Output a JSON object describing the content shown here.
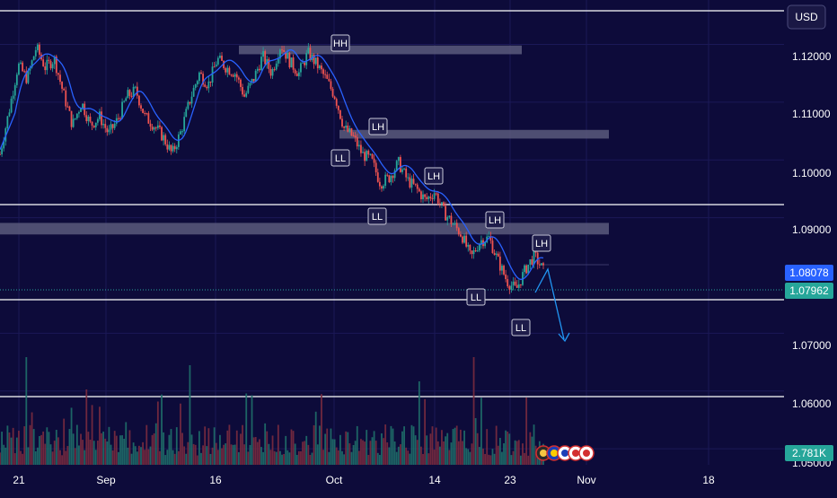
{
  "chart_data": {
    "type": "candlestick",
    "currency": "USD",
    "x_ticks": [
      "21",
      "Sep",
      "16",
      "Oct",
      "14",
      "23",
      "Nov",
      "18"
    ],
    "y_ticks": [
      "1.12000",
      "1.11000",
      "1.10000",
      "1.09000",
      "1.07000",
      "1.06000",
      "1.05000"
    ],
    "y_range": [
      1.048,
      1.128
    ],
    "price_labels": {
      "last": "1.08078",
      "current": "1.07962"
    },
    "volume_label": "2.781K",
    "levels": [
      1.1275,
      1.0945,
      1.0785,
      1.0615
    ],
    "zones": [
      {
        "low": 1.1183,
        "high": 1.1198
      },
      {
        "low": 1.1037,
        "high": 1.1052
      },
      {
        "low": 1.0871,
        "high": 1.0891
      }
    ],
    "swing_labels": [
      "HH",
      "LH",
      "LL",
      "LH",
      "LL",
      "LH",
      "LL",
      "LH",
      "LL"
    ],
    "close_path": [
      [
        "21",
        1.101
      ],
      [
        "",
        1.1085
      ],
      [
        "",
        1.1165
      ],
      [
        "",
        1.114
      ],
      [
        "",
        1.1195
      ],
      [
        "",
        1.116
      ],
      [
        "",
        1.1175
      ],
      [
        "",
        1.1115
      ],
      [
        "",
        1.106
      ],
      [
        "",
        1.11
      ],
      [
        "Sep",
        1.106
      ],
      [
        "",
        1.1075
      ],
      [
        "",
        1.1045
      ],
      [
        "",
        1.107
      ],
      [
        "",
        1.111
      ],
      [
        "",
        1.112
      ],
      [
        "",
        1.1075
      ],
      [
        "",
        1.106
      ],
      [
        "",
        1.104
      ],
      [
        "",
        1.101
      ],
      [
        "",
        1.105
      ],
      [
        "16",
        1.1105
      ],
      [
        "",
        1.115
      ],
      [
        "",
        1.113
      ],
      [
        "",
        1.1175
      ],
      [
        "",
        1.116
      ],
      [
        "",
        1.115
      ],
      [
        "",
        1.111
      ],
      [
        "",
        1.114
      ],
      [
        "",
        1.118
      ],
      [
        "",
        1.115
      ],
      [
        "",
        1.12
      ],
      [
        "",
        1.117
      ],
      [
        "",
        1.115
      ],
      [
        "",
        1.1185
      ],
      [
        "Oct",
        1.1165
      ],
      [
        "",
        1.114
      ],
      [
        "",
        1.111
      ],
      [
        "",
        1.1055
      ],
      [
        "",
        1.104
      ],
      [
        "",
        1.101
      ],
      [
        "",
        1.1
      ],
      [
        "",
        1.096
      ],
      [
        "",
        1.097
      ],
      [
        "",
        1.0995
      ],
      [
        "",
        1.0965
      ],
      [
        "",
        1.095
      ],
      [
        "14",
        1.093
      ],
      [
        "",
        1.0945
      ],
      [
        "",
        1.091
      ],
      [
        "",
        1.089
      ],
      [
        "",
        1.087
      ],
      [
        "",
        1.083
      ],
      [
        "",
        1.086
      ],
      [
        "",
        1.0865
      ],
      [
        "",
        1.0825
      ],
      [
        "23",
        1.079
      ],
      [
        "",
        1.0775
      ],
      [
        "",
        1.081
      ],
      [
        "",
        1.0835
      ],
      [
        "",
        1.0808
      ]
    ],
    "volume_spikes": [
      1.0,
      0.6,
      0.45,
      0.9,
      0.55,
      0.7,
      1.0,
      0.5
    ]
  }
}
